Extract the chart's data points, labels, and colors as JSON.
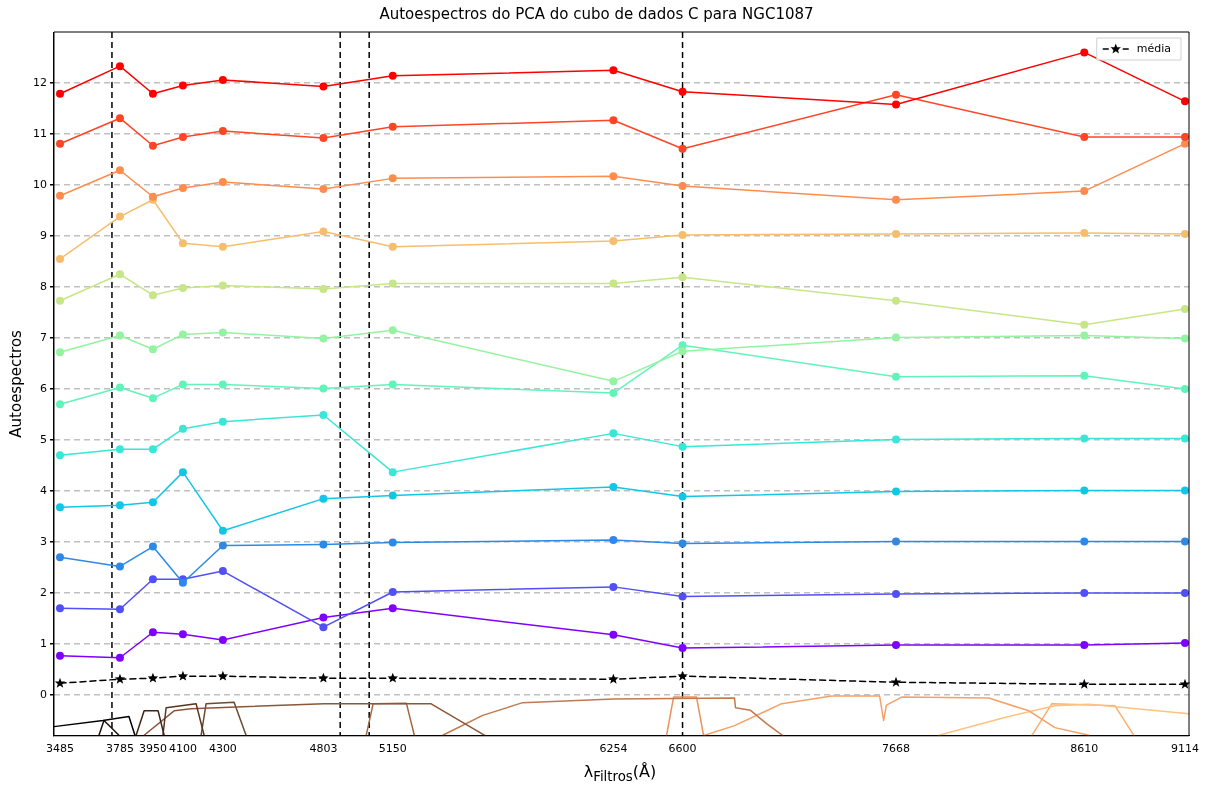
{
  "chart_data": {
    "type": "line",
    "title": "Autoespectros do PCA do cubo de dados C para NGC1087",
    "xlabel": "λ$_{Filtros}$(Å)",
    "ylabel": "Autoespectros",
    "x": [
      3485,
      3785,
      3950,
      4100,
      4300,
      4803,
      5150,
      6254,
      6600,
      7668,
      8610,
      9114
    ],
    "xlim": [
      3455,
      9134
    ],
    "xticks": [
      3485,
      3785,
      3950,
      4100,
      4300,
      4803,
      5150,
      6254,
      6600,
      7668,
      8610,
      9114
    ],
    "ylim": [
      -0.8,
      13
    ],
    "yticks": [
      0,
      1,
      2,
      3,
      4,
      5,
      6,
      7,
      8,
      9,
      10,
      11,
      12
    ],
    "grid": "y",
    "legend": "top right",
    "marker": "circle",
    "line_style": "solid",
    "ref_lines": [
      {
        "axis": "x",
        "value": 3745,
        "color": "#000000",
        "line_style": "dashed"
      },
      {
        "axis": "x",
        "value": 4887,
        "color": "#000000",
        "line_style": "dashed"
      },
      {
        "axis": "x",
        "value": 5032,
        "color": "#000000",
        "line_style": "dashed"
      },
      {
        "axis": "x",
        "value": 6600,
        "color": "#000000",
        "line_style": "dashed"
      }
    ],
    "series": [
      {
        "color": "#ff0000",
        "values": [
          11.79,
          12.33,
          11.79,
          11.95,
          12.06,
          11.93,
          12.14,
          12.25,
          11.83,
          11.58,
          12.6,
          11.64
        ]
      },
      {
        "color": "#ff4525",
        "values": [
          10.81,
          11.31,
          10.77,
          10.94,
          11.06,
          10.92,
          11.14,
          11.27,
          10.71,
          11.77,
          10.94,
          10.94
        ]
      },
      {
        "color": "#ff8c4f",
        "values": [
          9.79,
          10.29,
          9.77,
          9.94,
          10.06,
          9.92,
          10.13,
          10.17,
          9.98,
          9.71,
          9.88,
          10.81
        ]
      },
      {
        "color": "#f6be6c",
        "values": [
          8.55,
          9.38,
          9.71,
          8.86,
          8.79,
          9.09,
          8.79,
          8.9,
          9.02,
          9.04,
          9.06,
          9.04
        ]
      },
      {
        "color": "#c6e688",
        "values": [
          7.73,
          8.25,
          7.84,
          7.98,
          8.03,
          7.96,
          8.07,
          8.07,
          8.19,
          7.73,
          7.26,
          7.57
        ]
      },
      {
        "color": "#94f3a0",
        "values": [
          6.72,
          7.05,
          6.78,
          7.07,
          7.11,
          6.99,
          7.15,
          6.15,
          6.74,
          7.01,
          7.05,
          6.99
        ]
      },
      {
        "color": "#62f3bb",
        "values": [
          5.7,
          6.03,
          5.82,
          6.09,
          6.09,
          6.01,
          6.09,
          5.92,
          6.86,
          6.24,
          6.26,
          6.0
        ]
      },
      {
        "color": "#3ae6d6",
        "values": [
          4.7,
          4.82,
          4.82,
          5.22,
          5.36,
          5.49,
          4.37,
          5.13,
          4.87,
          5.01,
          5.03,
          5.03
        ]
      },
      {
        "color": "#14c6e6",
        "values": [
          3.68,
          3.72,
          3.78,
          4.37,
          3.22,
          3.85,
          3.91,
          4.08,
          3.89,
          3.99,
          4.01,
          4.01
        ]
      },
      {
        "color": "#2c8ae6",
        "values": [
          2.7,
          2.52,
          2.91,
          2.2,
          2.93,
          2.95,
          2.99,
          3.04,
          2.97,
          3.01,
          3.01,
          3.01
        ]
      },
      {
        "color": "#5050f6",
        "values": [
          1.7,
          1.68,
          2.27,
          2.27,
          2.43,
          1.33,
          2.02,
          2.12,
          1.93,
          1.98,
          2.0,
          2.0
        ]
      },
      {
        "color": "#7f00ff",
        "values": [
          0.77,
          0.73,
          1.23,
          1.19,
          1.08,
          1.52,
          1.7,
          1.18,
          0.92,
          0.98,
          0.98,
          1.02
        ]
      },
      {
        "name": "média",
        "color": "#000000",
        "marker": "star",
        "line_style": "dashed",
        "values": [
          0.23,
          0.31,
          0.33,
          0.37,
          0.37,
          0.33,
          0.33,
          0.31,
          0.37,
          0.25,
          0.21,
          0.21
        ]
      },
      {
        "color": "#000000",
        "marker": "none",
        "x": [
          3455,
          3700,
          3780,
          3830,
          3860
        ],
        "values": [
          -0.62,
          -0.5,
          -0.45,
          -0.42,
          -0.79
        ]
      },
      {
        "color": "#1f140c",
        "marker": "none",
        "x": [
          3680,
          3705,
          3780
        ],
        "values": [
          -0.79,
          -0.5,
          -0.79
        ]
      },
      {
        "color": "#3b2617",
        "marker": "none",
        "x": [
          3866,
          3906,
          3976,
          4006
        ],
        "values": [
          -0.79,
          -0.31,
          -0.31,
          -0.79
        ]
      },
      {
        "color": "#573622",
        "marker": "none",
        "x": [
          4000,
          4016,
          4166,
          4206
        ],
        "values": [
          -0.79,
          -0.25,
          -0.17,
          -0.79
        ]
      },
      {
        "color": "#8a573a",
        "marker": "none",
        "x": [
          3906,
          4056,
          4141,
          4807,
          5340,
          5610
        ],
        "values": [
          -0.79,
          -0.31,
          -0.27,
          -0.17,
          -0.17,
          -0.79
        ]
      },
      {
        "color": "#6e4a30",
        "marker": "none",
        "x": [
          4191,
          4216,
          4356,
          4416
        ],
        "values": [
          -0.79,
          -0.17,
          -0.14,
          -0.79
        ]
      },
      {
        "color": "#a06a44",
        "marker": "none",
        "x": [
          5017,
          5052,
          5218,
          5258
        ],
        "values": [
          -0.79,
          -0.17,
          -0.16,
          -0.79
        ]
      },
      {
        "color": "#c07a4e",
        "marker": "none",
        "x": [
          5400,
          5600,
          5800,
          6254,
          6860,
          6865,
          6940,
          7020,
          7100
        ],
        "values": [
          -0.79,
          -0.4,
          -0.15,
          -0.08,
          -0.06,
          -0.25,
          -0.3,
          -0.56,
          -0.79
        ]
      },
      {
        "color": "#e8925c",
        "marker": "none",
        "x": [
          6520,
          6555,
          6670,
          6705
        ],
        "values": [
          -0.79,
          -0.04,
          -0.04,
          -0.79
        ]
      },
      {
        "color": "#f7a066",
        "marker": "none",
        "x": [
          6710,
          6860,
          7096,
          7346,
          7586,
          7606,
          7620,
          7696,
          8132,
          8333,
          8463,
          8633
        ],
        "values": [
          -0.79,
          -0.6,
          -0.17,
          -0.02,
          -0.02,
          -0.5,
          -0.2,
          -0.04,
          -0.06,
          -0.31,
          -0.64,
          -0.79
        ]
      },
      {
        "color": "#ffc27f",
        "marker": "none",
        "x": [
          7882,
          8212,
          8463,
          8633,
          9134
        ],
        "values": [
          -0.79,
          -0.44,
          -0.21,
          -0.18,
          -0.37
        ]
      },
      {
        "color": "#ffae6e",
        "marker": "none",
        "x": [
          8348,
          8448,
          8763,
          8858
        ],
        "values": [
          -0.79,
          -0.17,
          -0.21,
          -0.79
        ]
      }
    ]
  }
}
